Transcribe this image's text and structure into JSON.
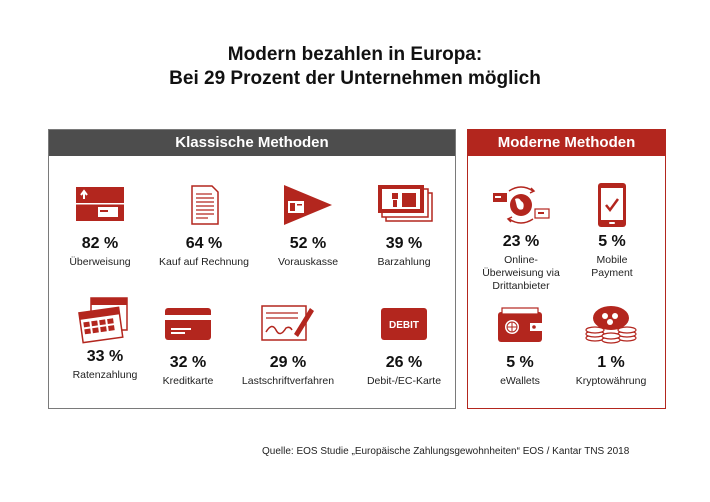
{
  "header": {
    "title_line1": "Modern bezahlen in Europa:",
    "title_line2": "Bei 29 Prozent der Unternehmen möglich"
  },
  "chart_data": {
    "type": "table",
    "title": "Modern bezahlen in Europa: Bei 29 Prozent der Unternehmen möglich",
    "groups": [
      {
        "name": "Klassische Methoden",
        "items": [
          {
            "label": "Überweisung",
            "value": 82,
            "display": "82 %",
            "icon": "bank-transfer-icon"
          },
          {
            "label": "Kauf auf Rechnung",
            "value": 64,
            "display": "64 %",
            "icon": "invoice-document-icon"
          },
          {
            "label": "Vorauskasse",
            "value": 52,
            "display": "52 %",
            "icon": "prepayment-arrow-icon"
          },
          {
            "label": "Barzahlung",
            "value": 39,
            "display": "39 %",
            "icon": "cash-banknotes-icon"
          },
          {
            "label": "Ratenzahlung",
            "value": 33,
            "display": "33 %",
            "icon": "calendar-installments-icon"
          },
          {
            "label": "Kreditkarte",
            "value": 32,
            "display": "32 %",
            "icon": "credit-card-icon"
          },
          {
            "label": "Lastschriftverfahren",
            "value": 29,
            "display": "29 %",
            "icon": "signature-pen-icon"
          },
          {
            "label": "Debit-/EC-Karte",
            "value": 26,
            "display": "26 %",
            "icon": "debit-card-icon",
            "icon_text": "DEBIT"
          }
        ]
      },
      {
        "name": "Moderne Methoden",
        "items": [
          {
            "label": "Online-Überweisung via Drittanbieter",
            "label_lines": [
              "Online-",
              "Überweisung via",
              "Drittanbieter"
            ],
            "value": 23,
            "display": "23 %",
            "icon": "globe-transfer-icon"
          },
          {
            "label": "Mobile Payment",
            "label_lines": [
              "Mobile",
              "Payment"
            ],
            "value": 5,
            "display": "5 %",
            "icon": "smartphone-check-icon"
          },
          {
            "label": "eWallets",
            "value": 5,
            "display": "5 %",
            "icon": "ewallet-icon"
          },
          {
            "label": "Kryptowährung",
            "value": 1,
            "display": "1 %",
            "icon": "crypto-coins-icon"
          }
        ]
      }
    ],
    "source": "Quelle: EOS Studie „Europäische Zahlungsgewohnheiten“ EOS / Kantar TNS 2018"
  },
  "colors": {
    "accent": "#b3261e",
    "dark_header": "#4d4d4d",
    "text": "#111111"
  }
}
